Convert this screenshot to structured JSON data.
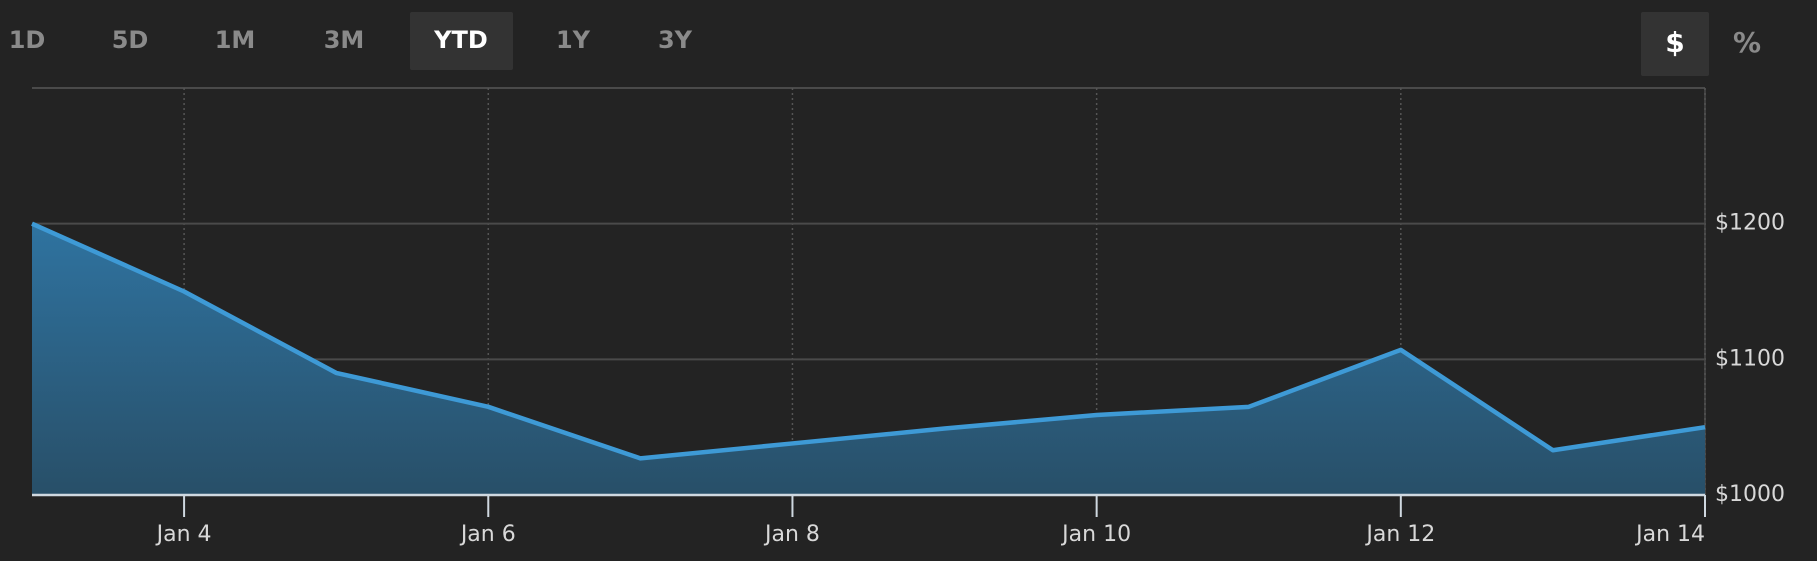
{
  "controls": {
    "ranges": [
      "1D",
      "5D",
      "1M",
      "3M",
      "YTD",
      "1Y",
      "3Y"
    ],
    "active_range": 4,
    "units": [
      "$",
      "%"
    ],
    "active_unit": 0
  },
  "chart_data": {
    "type": "area",
    "categories": [
      null,
      "Jan 4",
      null,
      "Jan 6",
      null,
      "Jan 8",
      null,
      "Jan 10",
      null,
      "Jan 12",
      null,
      "Jan 14"
    ],
    "series": [
      {
        "name": null,
        "color": "#3e9ad6",
        "values": [
          1200,
          1150,
          1090,
          1065,
          1027,
          1038,
          1049,
          1059,
          1065,
          1107,
          1033,
          1050
        ]
      }
    ],
    "ylim": [
      1000,
      1300
    ],
    "yticks": [
      {
        "value": 1000,
        "label": "$1000"
      },
      {
        "value": 1100,
        "label": "$1100"
      },
      {
        "value": 1200,
        "label": "$1200"
      }
    ],
    "grid": true
  }
}
